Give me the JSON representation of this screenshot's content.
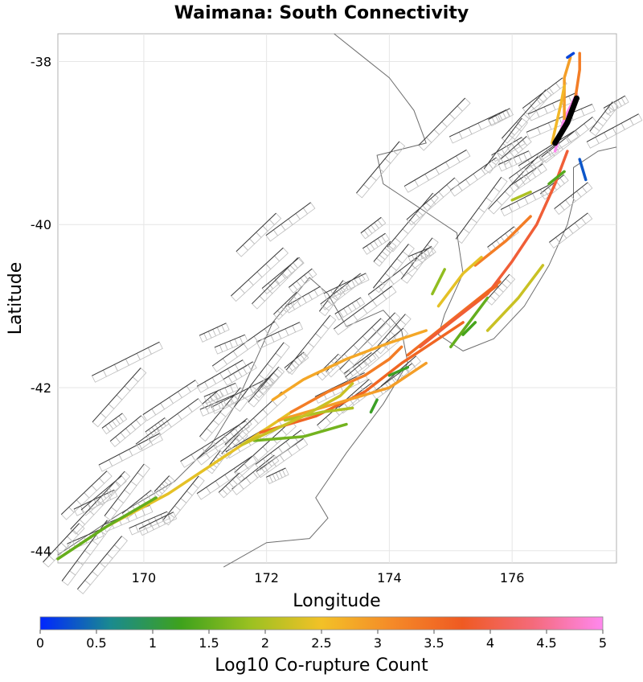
{
  "title": "Waimana: South Connectivity",
  "xlabel": "Longitude",
  "ylabel": "Latitude",
  "colorbar_label": "Log10 Co-rupture Count",
  "x_ticks": [
    "170",
    "172",
    "174",
    "176"
  ],
  "y_ticks": [
    "-38",
    "-40",
    "-42",
    "-44"
  ],
  "colorbar_ticks": [
    "0",
    "0.5",
    "1",
    "1.5",
    "2",
    "2.5",
    "3",
    "3.5",
    "4",
    "4.5",
    "5"
  ],
  "chart_data": {
    "type": "map",
    "xlim": [
      168.6,
      177.7
    ],
    "ylim": [
      -44.15,
      -37.66
    ],
    "colorbar_range": [
      0,
      5
    ],
    "colormap": [
      "#0026ff",
      "#1a8a8f",
      "#3ea21c",
      "#9cc121",
      "#f3c127",
      "#f58a28",
      "#ef5a22",
      "#f46a7a",
      "#ff88ee"
    ],
    "source_fault_color": "#000000",
    "faults": [
      {
        "pts": [
          [
            168.6,
            -44.1
          ],
          [
            169.4,
            -43.7
          ],
          [
            170.4,
            -43.3
          ],
          [
            171.2,
            -42.9
          ],
          [
            171.8,
            -42.6
          ],
          [
            172.4,
            -42.3
          ]
        ],
        "value": 2.4
      },
      {
        "pts": [
          [
            168.6,
            -44.1
          ],
          [
            169.4,
            -43.7
          ],
          [
            170.2,
            -43.35
          ]
        ],
        "value": 1.5
      },
      {
        "pts": [
          [
            172.4,
            -42.3
          ],
          [
            173.0,
            -42.05
          ],
          [
            173.6,
            -41.85
          ],
          [
            174.0,
            -41.65
          ],
          [
            174.2,
            -41.5
          ]
        ],
        "value": 3.3
      },
      {
        "pts": [
          [
            171.9,
            -42.55
          ],
          [
            172.8,
            -42.35
          ],
          [
            173.6,
            -42.05
          ],
          [
            174.2,
            -41.7
          ],
          [
            174.7,
            -41.45
          ],
          [
            175.2,
            -41.2
          ]
        ],
        "value": 3.6
      },
      {
        "pts": [
          [
            172.2,
            -42.4
          ],
          [
            173.1,
            -42.2
          ],
          [
            174.0,
            -42.0
          ],
          [
            174.6,
            -41.7
          ]
        ],
        "value": 2.9
      },
      {
        "pts": [
          [
            171.8,
            -42.65
          ],
          [
            172.6,
            -42.6
          ],
          [
            173.3,
            -42.45
          ]
        ],
        "value": 1.6
      },
      {
        "pts": [
          [
            172.3,
            -42.4
          ],
          [
            172.9,
            -42.3
          ],
          [
            173.4,
            -42.25
          ]
        ],
        "value": 2.0
      },
      {
        "pts": [
          [
            171.6,
            -42.7
          ],
          [
            172.6,
            -42.35
          ],
          [
            173.2,
            -42.1
          ],
          [
            173.4,
            -41.95
          ]
        ],
        "value": 2.2
      },
      {
        "pts": [
          [
            172.1,
            -42.15
          ],
          [
            172.6,
            -41.9
          ],
          [
            173.3,
            -41.65
          ],
          [
            174.0,
            -41.45
          ],
          [
            174.6,
            -41.3
          ]
        ],
        "value": 2.8
      },
      {
        "pts": [
          [
            174.3,
            -41.6
          ],
          [
            174.8,
            -41.3
          ],
          [
            175.3,
            -41.0
          ],
          [
            175.8,
            -40.7
          ]
        ],
        "value": 3.5
      },
      {
        "pts": [
          [
            174.5,
            -41.5
          ],
          [
            175.0,
            -41.2
          ],
          [
            175.6,
            -40.85
          ],
          [
            176.0,
            -40.45
          ],
          [
            176.4,
            -40.0
          ],
          [
            176.7,
            -39.5
          ],
          [
            176.9,
            -39.1
          ]
        ],
        "value": 3.9
      },
      {
        "pts": [
          [
            175.4,
            -40.5
          ],
          [
            175.9,
            -40.2
          ],
          [
            176.3,
            -39.9
          ]
        ],
        "value": 3.3
      },
      {
        "pts": [
          [
            176.7,
            -39.1
          ],
          [
            176.85,
            -38.7
          ],
          [
            177.05,
            -38.4
          ]
        ],
        "value": 5.0
      },
      {
        "pts": [
          [
            176.85,
            -38.7
          ],
          [
            176.85,
            -38.2
          ],
          [
            176.95,
            -37.95
          ]
        ],
        "value": 2.9
      },
      {
        "pts": [
          [
            177.0,
            -38.6
          ],
          [
            177.1,
            -38.1
          ],
          [
            177.1,
            -37.9
          ]
        ],
        "value": 3.3
      },
      {
        "pts": [
          [
            176.65,
            -39.0
          ],
          [
            176.8,
            -38.5
          ],
          [
            176.85,
            -38.3
          ]
        ],
        "value": 2.6
      },
      {
        "pts": [
          [
            176.9,
            -37.95
          ],
          [
            177.0,
            -37.9
          ]
        ],
        "value": 0.2
      },
      {
        "pts": [
          [
            177.1,
            -39.2
          ],
          [
            177.2,
            -39.45
          ]
        ],
        "value": 0.3
      },
      {
        "pts": [
          [
            176.6,
            -39.5
          ],
          [
            176.85,
            -39.35
          ]
        ],
        "value": 1.4
      },
      {
        "pts": [
          [
            175.0,
            -41.5
          ],
          [
            175.3,
            -41.2
          ],
          [
            175.6,
            -40.9
          ]
        ],
        "value": 1.5
      },
      {
        "pts": [
          [
            175.6,
            -41.3
          ],
          [
            176.1,
            -40.9
          ],
          [
            176.5,
            -40.5
          ]
        ],
        "value": 2.2
      },
      {
        "pts": [
          [
            175.4,
            -40.95
          ],
          [
            175.75,
            -40.75
          ]
        ],
        "value": 3.6
      },
      {
        "pts": [
          [
            174.8,
            -41.0
          ],
          [
            175.2,
            -40.6
          ],
          [
            175.5,
            -40.4
          ]
        ],
        "value": 2.4
      },
      {
        "pts": [
          [
            174.7,
            -40.85
          ],
          [
            174.9,
            -40.55
          ]
        ],
        "value": 1.8
      },
      {
        "pts": [
          [
            173.7,
            -42.3
          ],
          [
            173.8,
            -42.15
          ]
        ],
        "value": 1.2
      },
      {
        "pts": [
          [
            174.0,
            -41.85
          ],
          [
            174.3,
            -41.75
          ]
        ],
        "value": 1.2
      },
      {
        "pts": [
          [
            175.2,
            -41.35
          ],
          [
            175.4,
            -41.2
          ]
        ],
        "value": 1.3
      },
      {
        "pts": [
          [
            176.0,
            -39.7
          ],
          [
            176.3,
            -39.6
          ]
        ],
        "value": 2.0
      }
    ],
    "source_fault": [
      [
        176.7,
        -39.0
      ],
      [
        176.9,
        -38.75
      ],
      [
        177.05,
        -38.45
      ]
    ],
    "grid": true
  }
}
